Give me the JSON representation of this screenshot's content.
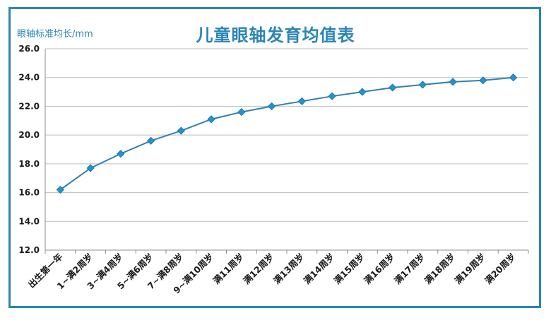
{
  "title": "儿童眼轴发育均值表",
  "ylabel": "眼轴标准均长/mm",
  "colors": {
    "frame": "#2a86b4",
    "line": "#2f7fb0",
    "marker": "#1f94d2",
    "grid": "#bdbdbd"
  },
  "chart_data": {
    "type": "line",
    "title": "儿童眼轴发育均值表",
    "ylabel": "眼轴标准均长/mm",
    "xlabel": "",
    "ylim": [
      12.0,
      26.0
    ],
    "yticks": [
      "12.0",
      "14.0",
      "16.0",
      "18.0",
      "20.0",
      "22.0",
      "24.0",
      "26.0"
    ],
    "grid": true,
    "categories": [
      "出生第一年",
      "1~满2周岁",
      "3~满4周岁",
      "5~满6周岁",
      "7~满8周岁",
      "9~满10周岁",
      "满11周岁",
      "满12周岁",
      "满13周岁",
      "满14周岁",
      "满15周岁",
      "满16周岁",
      "满17周岁",
      "满18周岁",
      "满19周岁",
      "满20周岁"
    ],
    "values": [
      16.2,
      17.7,
      18.7,
      19.6,
      20.3,
      21.1,
      21.6,
      22.0,
      22.35,
      22.7,
      23.0,
      23.3,
      23.5,
      23.7,
      23.8,
      24.0
    ]
  }
}
